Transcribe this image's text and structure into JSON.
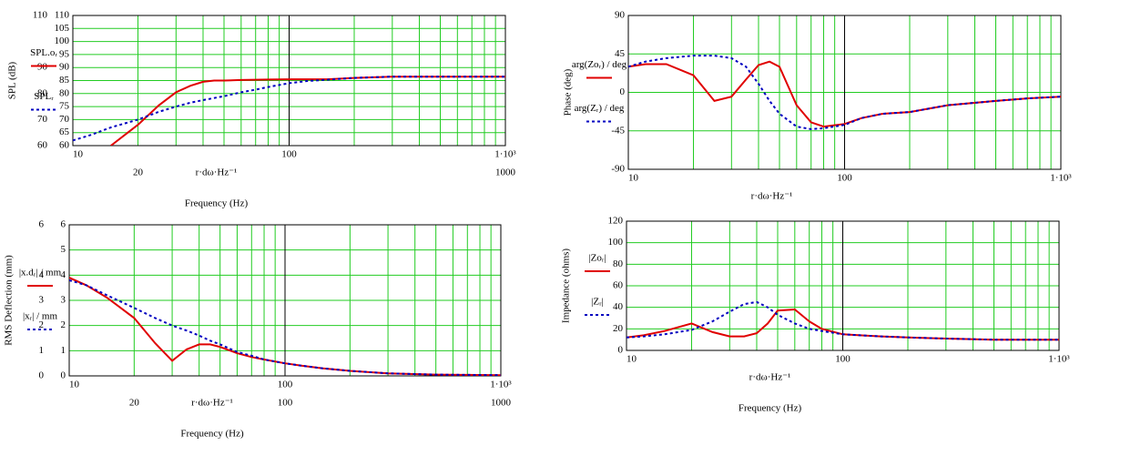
{
  "chart_data": [
    {
      "type": "line",
      "xscale": "log",
      "ylabel": "SPL (dB)",
      "xlabel": "r·dω·Hz⁻¹",
      "xcaption": "Frequency (Hz)",
      "x": [
        10,
        12,
        15,
        20,
        25,
        30,
        35,
        40,
        45,
        50,
        60,
        70,
        80,
        100,
        120,
        150,
        200,
        300,
        500,
        700,
        1000
      ],
      "xlim": [
        10,
        1000
      ],
      "xticks": [
        10,
        100,
        {
          "value": 1000,
          "label": "1·10³"
        }
      ],
      "ylim": [
        60,
        110
      ],
      "yticks": [
        60,
        65,
        70,
        75,
        80,
        85,
        90,
        95,
        100,
        105,
        110
      ],
      "xmarkers": [
        20,
        1000
      ],
      "ymarkers": [
        110,
        90,
        80,
        70,
        60
      ],
      "grid": true,
      "series": [
        {
          "name": "SPL.oᵣ",
          "color": "#e00000",
          "dash": false,
          "values": [
            null,
            null,
            60,
            68,
            75.5,
            80.5,
            83,
            84.5,
            85,
            85,
            85.2,
            85.3,
            85.4,
            85.5,
            85.5,
            85.5,
            86,
            86.5,
            86.5,
            86.5,
            86.5
          ]
        },
        {
          "name": "SPLᵣ",
          "color": "#0000c0",
          "dash": true,
          "values": [
            62,
            64,
            67,
            70,
            73,
            75,
            76.5,
            77.5,
            78.3,
            79,
            80.5,
            81.5,
            82.5,
            84,
            84.8,
            85.3,
            86,
            86.5,
            86.5,
            86.5,
            86.5
          ]
        }
      ]
    },
    {
      "type": "line",
      "xscale": "log",
      "ylabel": "Phase (deg)",
      "xlabel": "r·dω·Hz⁻¹",
      "x": [
        10,
        12,
        15,
        20,
        25,
        30,
        35,
        40,
        45,
        50,
        60,
        70,
        80,
        100,
        120,
        150,
        200,
        300,
        500,
        700,
        1000
      ],
      "xlim": [
        10,
        1000
      ],
      "xticks": [
        10,
        100,
        {
          "value": 1000,
          "label": "1·10³"
        }
      ],
      "ylim": [
        -90,
        90
      ],
      "yticks": [
        -90,
        -45,
        0,
        45,
        90
      ],
      "grid": true,
      "series": [
        {
          "name": "arg(Zoᵣ) / deg",
          "color": "#e00000",
          "dash": false,
          "values": [
            30,
            33,
            33,
            20,
            -10,
            -5,
            15,
            32,
            36,
            30,
            -15,
            -35,
            -40,
            -37,
            -30,
            -25,
            -23,
            -15,
            -10,
            -7,
            -5
          ]
        },
        {
          "name": "arg(Zᵣ) / deg",
          "color": "#0000c0",
          "dash": true,
          "values": [
            30,
            36,
            40,
            43,
            43,
            40,
            30,
            10,
            -10,
            -25,
            -40,
            -43,
            -42,
            -38,
            -30,
            -25,
            -23,
            -15,
            -10,
            -7,
            -5
          ]
        }
      ]
    },
    {
      "type": "line",
      "xscale": "log",
      "ylabel": "RMS Deflection (mm)",
      "xlabel": "r·dω·Hz⁻¹",
      "xcaption": "Frequency (Hz)",
      "x": [
        10,
        12,
        15,
        20,
        25,
        30,
        35,
        40,
        45,
        50,
        60,
        70,
        80,
        100,
        120,
        150,
        200,
        300,
        500,
        700,
        1000
      ],
      "xlim": [
        10,
        1000
      ],
      "xticks": [
        10,
        100,
        {
          "value": 1000,
          "label": "1·10³"
        }
      ],
      "ylim": [
        0,
        6
      ],
      "yticks": [
        0,
        1,
        2,
        3,
        4,
        5,
        6
      ],
      "xmarkers": [
        20,
        100,
        1000
      ],
      "ymarkers": [
        6,
        4,
        3,
        2,
        1,
        0
      ],
      "grid": true,
      "series": [
        {
          "name": "|x.dᵣ| / mm",
          "color": "#e00000",
          "dash": false,
          "values": [
            3.9,
            3.6,
            3.1,
            2.3,
            1.3,
            0.6,
            1.05,
            1.25,
            1.25,
            1.15,
            0.9,
            0.75,
            0.65,
            0.5,
            0.4,
            0.3,
            0.2,
            0.1,
            0.05,
            0.04,
            0.03
          ]
        },
        {
          "name": "|xᵣ| / mm",
          "color": "#0000c0",
          "dash": true,
          "values": [
            3.8,
            3.6,
            3.2,
            2.7,
            2.3,
            2.0,
            1.8,
            1.6,
            1.4,
            1.25,
            0.95,
            0.8,
            0.65,
            0.5,
            0.4,
            0.3,
            0.2,
            0.1,
            0.05,
            0.04,
            0.03
          ]
        }
      ]
    },
    {
      "type": "line",
      "xscale": "log",
      "ylabel": "Impedance (ohms)",
      "xlabel": "r·dω·Hz⁻¹",
      "xcaption": "Frequency (Hz)",
      "x": [
        10,
        12,
        15,
        20,
        25,
        30,
        35,
        40,
        45,
        50,
        60,
        70,
        80,
        100,
        120,
        150,
        200,
        300,
        500,
        700,
        1000
      ],
      "xlim": [
        10,
        1000
      ],
      "xticks": [
        10,
        100,
        {
          "value": 1000,
          "label": "1·10³"
        }
      ],
      "ylim": [
        0,
        120
      ],
      "yticks": [
        0,
        20,
        40,
        60,
        80,
        100,
        120
      ],
      "grid": true,
      "series": [
        {
          "name": "|Zoᵣ|",
          "color": "#e00000",
          "dash": false,
          "values": [
            12,
            14,
            18,
            25,
            17,
            13,
            13,
            16,
            25,
            37,
            38,
            27,
            20,
            15,
            14,
            13,
            12,
            11,
            10,
            10,
            10
          ]
        },
        {
          "name": "|Zᵣ|",
          "color": "#0000c0",
          "dash": true,
          "values": [
            12,
            13,
            15,
            19,
            27,
            36,
            43,
            45,
            40,
            33,
            25,
            20,
            18,
            15,
            14,
            13,
            12,
            11,
            10,
            10,
            10
          ]
        }
      ]
    }
  ]
}
